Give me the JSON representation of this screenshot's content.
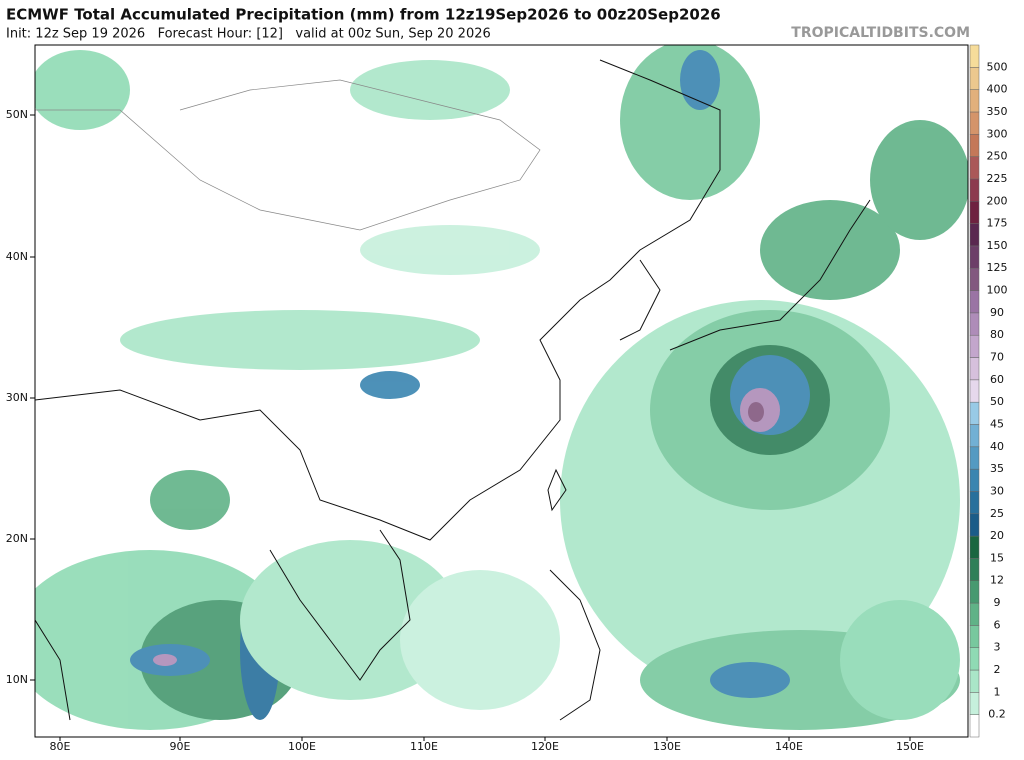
{
  "header": {
    "title": "ECMWF Total Accumulated Precipitation (mm) from 12z19Sep2026 to 00z20Sep2026",
    "subtitle": "Init: 12z Sep 19 2026   Forecast Hour: [12]   valid at 00z Sun, Sep 20 2026",
    "watermark": "TROPICALTIDBITS.COM"
  },
  "map": {
    "lat_labels": [
      "50N",
      "40N",
      "30N",
      "20N",
      "10N"
    ],
    "lon_labels": [
      "80E",
      "90E",
      "100E",
      "110E",
      "120E",
      "130E",
      "140E",
      "150E"
    ]
  },
  "colorbar": {
    "labels": [
      "0.2",
      "1",
      "2",
      "3",
      "6",
      "9",
      "12",
      "15",
      "20",
      "25",
      "30",
      "35",
      "40",
      "45",
      "50",
      "60",
      "70",
      "80",
      "90",
      "100",
      "125",
      "150",
      "175",
      "200",
      "225",
      "250",
      "300",
      "350",
      "400",
      "500"
    ],
    "colors": [
      "#ffffff",
      "#c6f0dc",
      "#aae6c8",
      "#8fdab4",
      "#78c89e",
      "#60b287",
      "#479970",
      "#2f7f58",
      "#1a6640",
      "#1b5c88",
      "#28709c",
      "#3a85b0",
      "#549ac2",
      "#72b0d4",
      "#98cae6",
      "#e6d8ec",
      "#d6c0dc",
      "#c3a6cc",
      "#ae8cb8",
      "#9a74a4",
      "#82587f",
      "#6c3e68",
      "#5a2850",
      "#6e2240",
      "#8c3a4e",
      "#aa5858",
      "#c47858",
      "#d4946a",
      "#e2b07c",
      "#ecc88e",
      "#f6dc9a"
    ]
  }
}
